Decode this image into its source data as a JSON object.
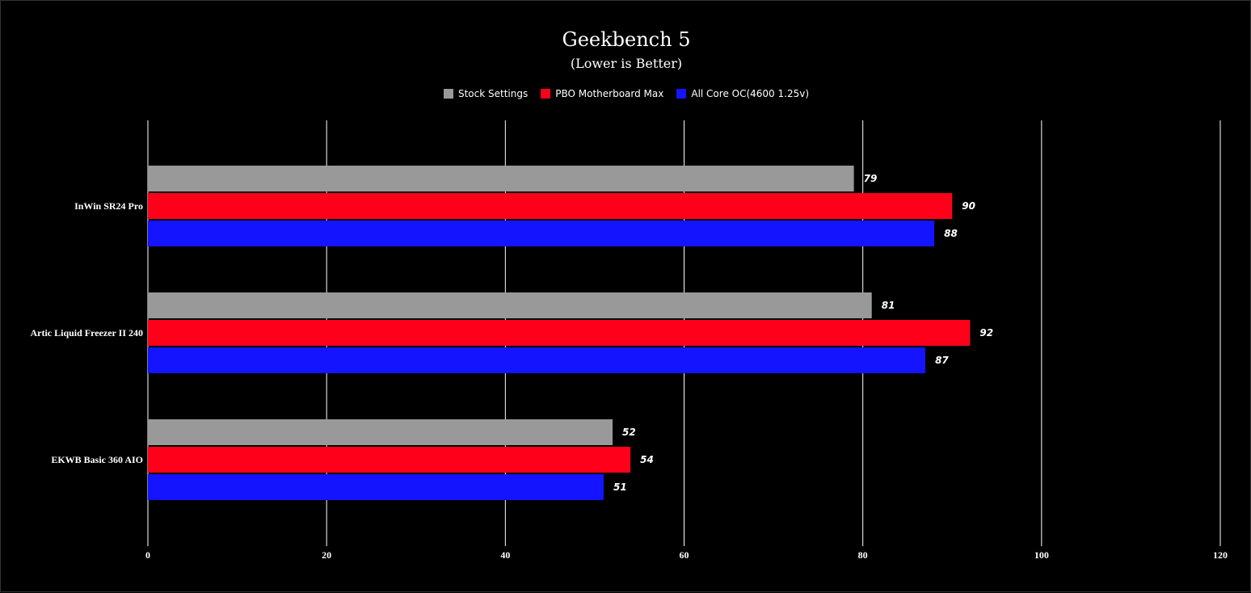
{
  "chart_data": {
    "type": "bar",
    "orientation": "horizontal",
    "title": "Geekbench 5",
    "subtitle": "(Lower is Better)",
    "categories": [
      "InWin SR24 Pro",
      "Artic Liquid Freezer II 240",
      "EKWB Basic 360 AIO"
    ],
    "series": [
      {
        "name": "Stock Settings",
        "color": "#999999",
        "values": [
          79,
          81,
          52
        ]
      },
      {
        "name": "PBO Motherboard Max",
        "color": "#ff001a",
        "values": [
          90,
          92,
          54
        ]
      },
      {
        "name": "All Core OC(4600 1.25v)",
        "color": "#1414ff",
        "values": [
          88,
          87,
          51
        ]
      }
    ],
    "xlim": [
      0,
      120
    ],
    "xticks": [
      0,
      20,
      40,
      60,
      80,
      100,
      120
    ],
    "grid": true,
    "legend_position": "top-center",
    "background": "#000000"
  }
}
